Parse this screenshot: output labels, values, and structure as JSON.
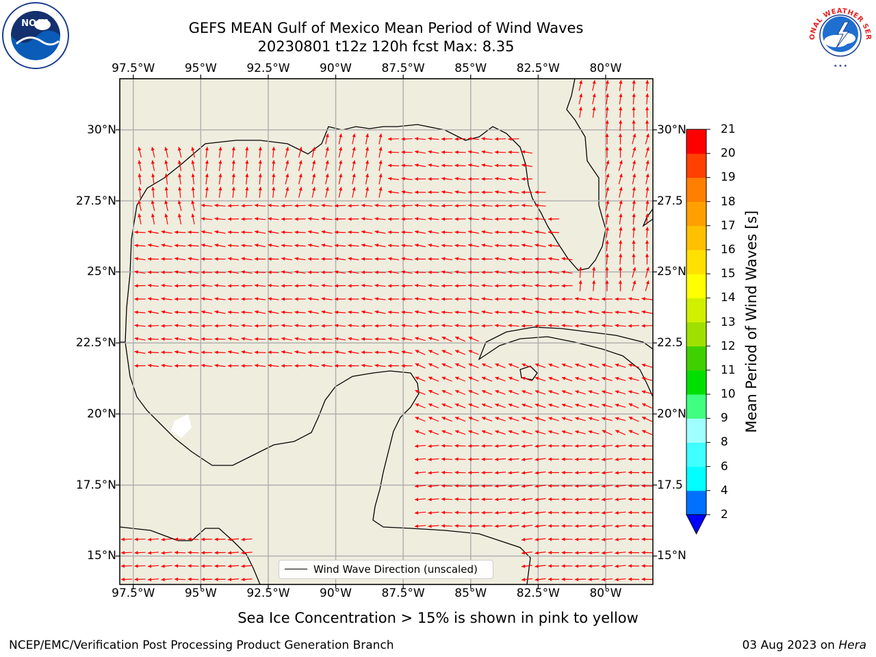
{
  "title": {
    "line1": "GEFS MEAN Gulf of Mexico Mean Period of Wind Waves",
    "line2": "20230801 t12z 120h fcst   Max: 8.35"
  },
  "logos": {
    "noaa": {
      "icon": "noaa-logo-icon",
      "text": "NOAA"
    },
    "nws": {
      "icon": "nws-logo-icon",
      "text": "NATIONAL WEATHER SERVICE"
    }
  },
  "map": {
    "lon_labels": [
      "97.5°W",
      "95°W",
      "92.5°W",
      "90°W",
      "87.5°W",
      "85°W",
      "82.5°W",
      "80°W"
    ],
    "lat_labels": [
      "30°N",
      "27.5°N",
      "25°N",
      "22.5°N",
      "20°N",
      "17.5°N",
      "15°N"
    ],
    "right_lat_labels": [
      "30°N",
      "27.5",
      "25°N",
      "22.5",
      "20°N",
      "17.5",
      "15°N"
    ],
    "lon_values": [
      -97.5,
      -95,
      -92.5,
      -90,
      -87.5,
      -85,
      -82.5,
      -80
    ],
    "lat_values": [
      30,
      27.5,
      25,
      22.5,
      20,
      17.5,
      15
    ],
    "lon_range": [
      -98,
      -78.25
    ],
    "lat_range": [
      14,
      31.8
    ],
    "colors": {
      "land": "#efedde",
      "coast": "#000000",
      "grid": "#b0b0b0",
      "arrows": "#ff0000"
    },
    "legend": {
      "label": "Wind Wave Direction (unscaled)"
    }
  },
  "colorbar": {
    "label": "Mean Period of Wind Waves [s]",
    "ticks": [
      "21",
      "20",
      "19",
      "18",
      "17",
      "16",
      "15",
      "14",
      "13",
      "12",
      "11",
      "10",
      "9",
      "8",
      "6",
      "4",
      "2"
    ],
    "levels": [
      2,
      4,
      6,
      8,
      9,
      10,
      11,
      12,
      13,
      14,
      15,
      16,
      17,
      18,
      19,
      20,
      21
    ],
    "colors": [
      "#0070ff",
      "#00ffff",
      "#40ffff",
      "#a0ffff",
      "#40ff80",
      "#00e000",
      "#40d000",
      "#a0e000",
      "#d0f000",
      "#ffff00",
      "#ffe000",
      "#ffc000",
      "#ffa000",
      "#ff8000",
      "#ff4000",
      "#ff0000"
    ],
    "under_color": "#0000ff"
  },
  "note": "Sea Ice Concentration > 15% is shown in pink to yellow",
  "footer": {
    "left": "NCEP/EMC/Verification Post Processing Product Generation Branch",
    "right_date": "03 Aug 2023 on ",
    "right_machine": "Hera"
  }
}
